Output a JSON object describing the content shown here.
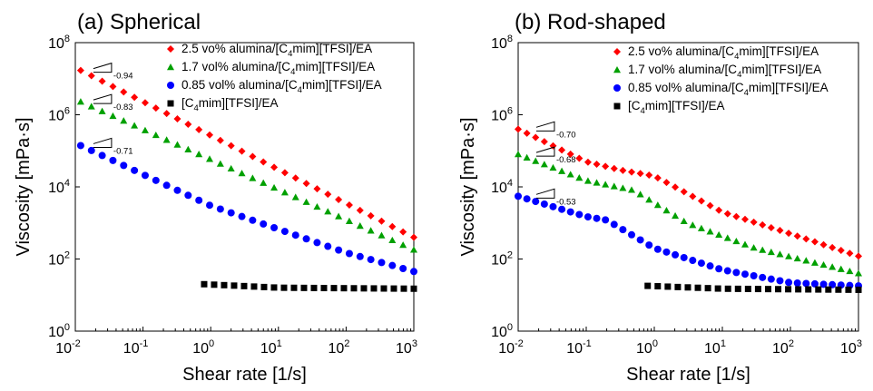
{
  "chart_data": [
    {
      "type": "scatter",
      "title": "(a) Spherical",
      "xlabel": "Shear rate [1/s]",
      "ylabel": "Viscosity [mPa·s]",
      "x_scale": "log",
      "y_scale": "log",
      "xlim": [
        0.01,
        1000
      ],
      "ylim": [
        1,
        100000000
      ],
      "x_ticks": [
        {
          "base": "10",
          "exp": "-2"
        },
        {
          "base": "10",
          "exp": "-1"
        },
        {
          "base": "10",
          "exp": "0"
        },
        {
          "base": "10",
          "exp": "1"
        },
        {
          "base": "10",
          "exp": "2"
        },
        {
          "base": "10",
          "exp": "3"
        }
      ],
      "y_ticks": [
        {
          "base": "10",
          "exp": "0"
        },
        {
          "base": "10",
          "exp": "2"
        },
        {
          "base": "10",
          "exp": "4"
        },
        {
          "base": "10",
          "exp": "6"
        },
        {
          "base": "10",
          "exp": "8"
        }
      ],
      "grid": false,
      "legend_position": "top-right",
      "series": [
        {
          "name_pre": "2.5 vo% alumina/[C",
          "name_sub": "4",
          "name_post": "mim][TFSI]/EA",
          "color": "#ff0000",
          "marker": "diamond",
          "segments": [
            {
              "x0": 0.012,
              "x1": 1000,
              "y0": 17000000,
              "y1": 400,
              "bends": [],
              "n": 32
            }
          ]
        },
        {
          "name_pre": "1.7 vol% alumina/[C",
          "name_sub": "4",
          "name_post": "mim][TFSI]/EA",
          "color": "#00a000",
          "marker": "triangle",
          "segments": [
            {
              "x0": 0.012,
              "x1": 1000,
              "y0": 2300000,
              "y1": 180,
              "bends": [],
              "n": 32
            }
          ]
        },
        {
          "name_pre": "0.85 vol% alumina/[C",
          "name_sub": "4",
          "name_post": "mim][TFSI]/EA",
          "color": "#0000ff",
          "marker": "circle",
          "segments": [
            {
              "x0": 0.012,
              "x1": 1000,
              "y0": 140000,
              "y1": 45,
              "bends": [
                [
                  1,
                  3000
                ],
                [
                  100,
                  150
                ]
              ],
              "n": 32
            }
          ]
        },
        {
          "name_pre": "[C",
          "name_sub": "4",
          "name_post": "mim][TFSI]/EA",
          "color": "#000000",
          "marker": "square",
          "segments": [
            {
              "x0": 0.8,
              "x1": 1000,
              "y0": 20,
              "y1": 15,
              "bends": [
                [
                  10,
                  16
                ]
              ],
              "n": 22
            }
          ]
        }
      ],
      "slope_labels": [
        "-0.94",
        "-0.83",
        "-0.71"
      ]
    },
    {
      "type": "scatter",
      "title": "(b) Rod-shaped",
      "xlabel": "Shear rate [1/s]",
      "ylabel": "Viscosity [mPa·s]",
      "x_scale": "log",
      "y_scale": "log",
      "xlim": [
        0.01,
        1000
      ],
      "ylim": [
        1,
        100000000
      ],
      "x_ticks": [
        {
          "base": "10",
          "exp": "-2"
        },
        {
          "base": "10",
          "exp": "-1"
        },
        {
          "base": "10",
          "exp": "0"
        },
        {
          "base": "10",
          "exp": "1"
        },
        {
          "base": "10",
          "exp": "2"
        },
        {
          "base": "10",
          "exp": "3"
        }
      ],
      "y_ticks": [
        {
          "base": "10",
          "exp": "0"
        },
        {
          "base": "10",
          "exp": "2"
        },
        {
          "base": "10",
          "exp": "4"
        },
        {
          "base": "10",
          "exp": "6"
        },
        {
          "base": "10",
          "exp": "8"
        }
      ],
      "grid": false,
      "legend_position": "top-right",
      "series": [
        {
          "name_pre": "2.5 vo% alumina/[C",
          "name_sub": "4",
          "name_post": "mim][TFSI]/EA",
          "color": "#ff0000",
          "marker": "diamond",
          "segments": [
            {
              "x0": 0.01,
              "x1": 1000,
              "y0": 400000,
              "y1": 120,
              "bends": [
                [
                  0.1,
                  50000
                ],
                [
                  0.3,
                  30000
                ],
                [
                  1,
                  20000
                ],
                [
                  10,
                  2000
                ],
                [
                  100,
                  500
                ]
              ],
              "n": 40
            }
          ]
        },
        {
          "name_pre": "1.7 vol% alumina/[C",
          "name_sub": "4",
          "name_post": "mim][TFSI]/EA",
          "color": "#00a000",
          "marker": "triangle",
          "segments": [
            {
              "x0": 0.01,
              "x1": 1000,
              "y0": 80000,
              "y1": 40,
              "bends": [
                [
                  0.1,
                  15000
                ],
                [
                  0.5,
                  8000
                ],
                [
                  3,
                  1000
                ],
                [
                  30,
                  200
                ]
              ],
              "n": 40
            }
          ]
        },
        {
          "name_pre": "0.85 vol% alumina/[C",
          "name_sub": "4",
          "name_post": "mim][TFSI]/EA",
          "color": "#0000ff",
          "marker": "circle",
          "segments": [
            {
              "x0": 0.01,
              "x1": 1000,
              "y0": 5500,
              "y1": 18,
              "bends": [
                [
                  0.1,
                  1500
                ],
                [
                  0.2,
                  1200
                ],
                [
                  1,
                  200
                ],
                [
                  10,
                  50
                ],
                [
                  100,
                  22
                ]
              ],
              "n": 40
            }
          ]
        },
        {
          "name_pre": "[C",
          "name_sub": "4",
          "name_post": "mim][TFSI]/EA",
          "color": "#000000",
          "marker": "square",
          "segments": [
            {
              "x0": 0.8,
              "x1": 1000,
              "y0": 18,
              "y1": 14,
              "bends": [
                [
                  10,
                  15
                ]
              ],
              "n": 22
            }
          ]
        }
      ],
      "slope_labels": [
        "-0.70",
        "-0.68",
        "-0.53"
      ]
    }
  ]
}
